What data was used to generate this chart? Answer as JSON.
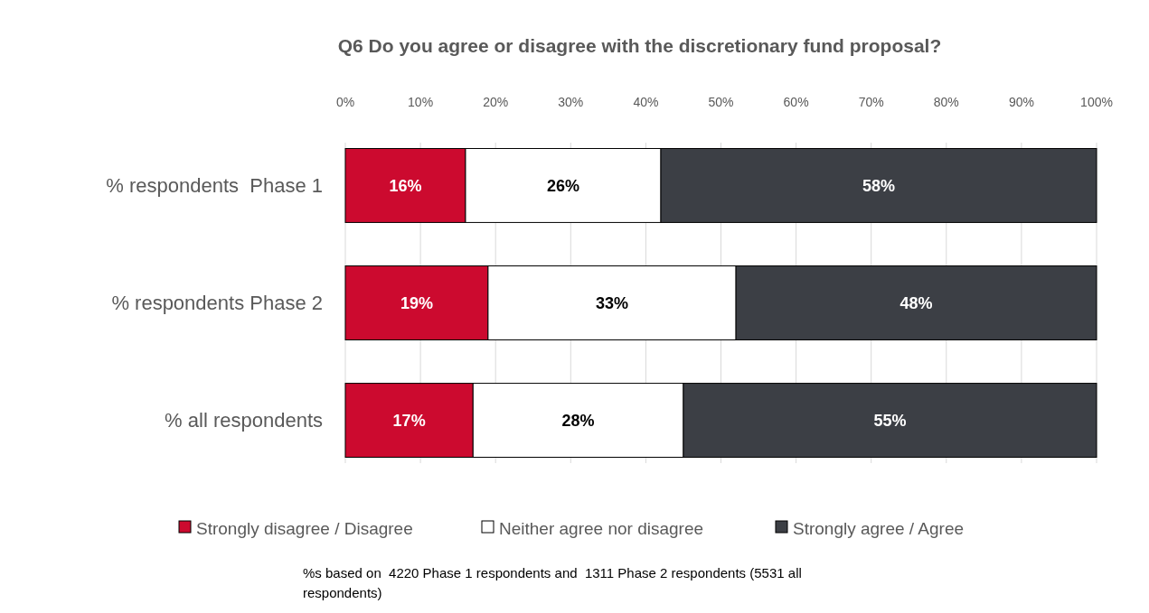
{
  "chart_data": {
    "type": "bar",
    "orientation": "horizontal",
    "stacked": true,
    "title": "Q6 Do you agree or disagree with the discretionary fund proposal?",
    "categories": [
      "% respondents  Phase 1",
      "% respondents Phase 2",
      "% all respondents"
    ],
    "series": [
      {
        "name": "Strongly disagree / Disagree",
        "color": "#cc0a2f",
        "values": [
          16,
          19,
          17
        ],
        "value_labels": [
          "16%",
          "19%",
          "17%"
        ]
      },
      {
        "name": "Neither agree nor disagree",
        "color": "#ffffff",
        "values": [
          26,
          33,
          28
        ],
        "value_labels": [
          "26%",
          "33%",
          "28%"
        ]
      },
      {
        "name": "Strongly agree / Agree",
        "color": "#3c3f45",
        "values": [
          58,
          48,
          55
        ],
        "value_labels": [
          "58%",
          "48%",
          "55%"
        ]
      }
    ],
    "xlim": [
      0,
      100
    ],
    "xticks": [
      {
        "value": 0,
        "label": "0%"
      },
      {
        "value": 10,
        "label": "10%"
      },
      {
        "value": 20,
        "label": "20%"
      },
      {
        "value": 30,
        "label": "30%"
      },
      {
        "value": 40,
        "label": "40%"
      },
      {
        "value": 50,
        "label": "50%"
      },
      {
        "value": 60,
        "label": "60%"
      },
      {
        "value": 70,
        "label": "70%"
      },
      {
        "value": 80,
        "label": "80%"
      },
      {
        "value": 90,
        "label": "90%"
      },
      {
        "value": 100,
        "label": "100%"
      }
    ],
    "grid": "x",
    "legend": "bottom",
    "annotations": [
      "%s based on  4220 Phase 1 respondents and  1311 Phase 2 respondents (5531 all respondents)"
    ]
  }
}
